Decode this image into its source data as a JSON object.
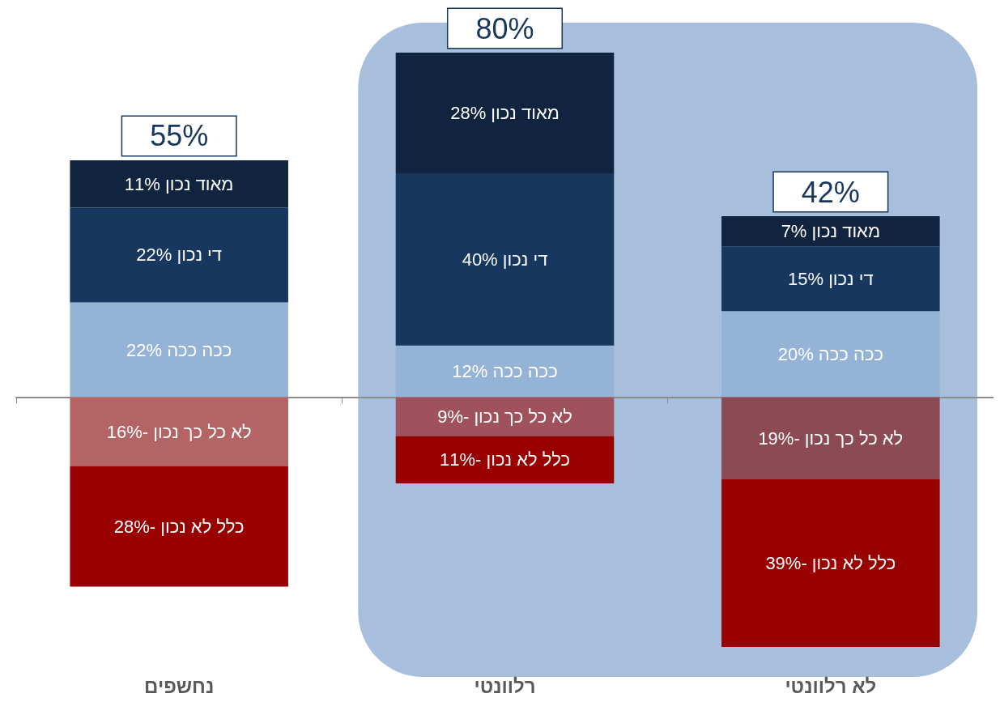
{
  "chart_data": {
    "type": "bar",
    "stacked": true,
    "categories": [
      "נחשפים",
      "רלוונטי",
      "לא רלוונטי"
    ],
    "series": [
      {
        "color": "#95b3d7",
        "values": [
          22,
          12,
          20
        ],
        "value_labels": [
          "ככה ככה 22%",
          "ככה ככה 12%",
          "ככה ככה 20%"
        ]
      },
      {
        "color": "#17375e",
        "values": [
          22,
          40,
          15
        ],
        "value_labels": [
          "די נכון 22%",
          "די נכון 40%",
          "די נכון 15%"
        ]
      },
      {
        "color": "#10243f",
        "values": [
          11,
          28,
          7
        ],
        "value_labels": [
          "מאוד נכון 11%",
          "מאוד נכון 28%",
          "מאוד נכון 7%"
        ]
      },
      {
        "color": "#b46464",
        "colors": [
          "#b46464",
          "#a0525c",
          "#8c4a55"
        ],
        "values": [
          -16,
          -9,
          -19
        ],
        "value_labels": [
          "לא כל כך נכון -16%",
          "לא כל כך נכון -9%",
          "לא כל כך נכון -19%"
        ]
      },
      {
        "color": "#990000",
        "values": [
          -28,
          -11,
          -39
        ],
        "value_labels": [
          "כלל לא נכון -28%",
          "כלל לא נכון -11%",
          "כלל לא נכון -39%"
        ]
      }
    ],
    "bands": [
      {
        "axis": "x",
        "from": "רלוונטי",
        "to": "לא רלוונטי",
        "color": "#a7bfdc"
      }
    ],
    "annotations": [
      {
        "text": "55%",
        "x": "נחשפים",
        "y": 55
      },
      {
        "text": "80%",
        "x": "רלוונטי",
        "y": 80
      },
      {
        "text": "42%",
        "x": "לא רלוונטי",
        "y": 42
      }
    ]
  }
}
